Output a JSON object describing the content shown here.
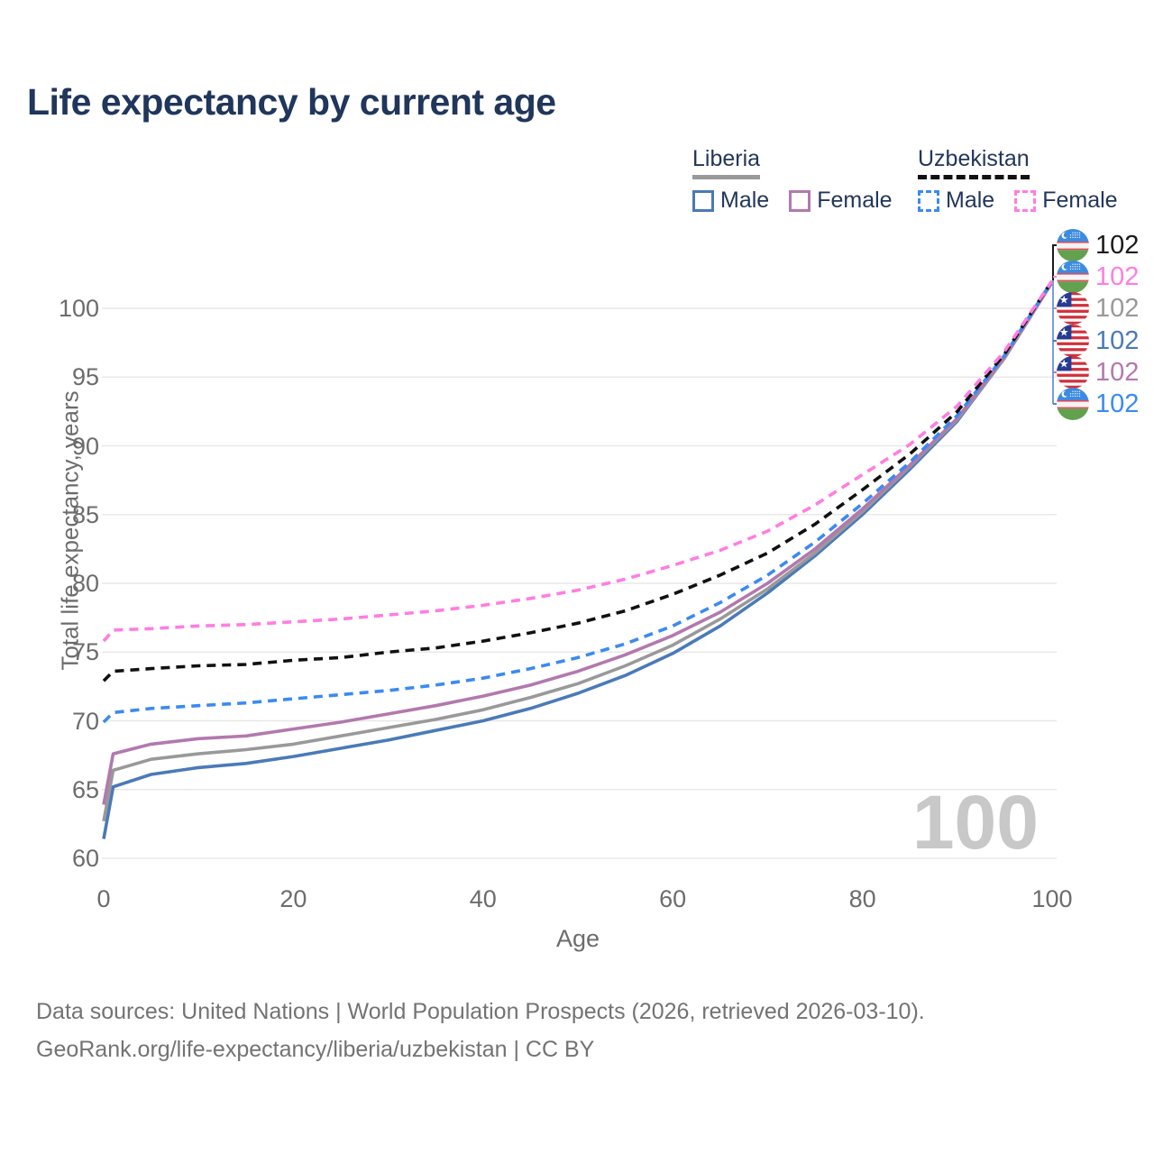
{
  "title": "Life expectancy by current age",
  "legend": {
    "groups": [
      {
        "label": "Liberia",
        "style": "solid",
        "underline_color": "#999999",
        "items": [
          {
            "label": "Male",
            "color": "#4a7ab8",
            "dash": false
          },
          {
            "label": "Female",
            "color": "#b279ae",
            "dash": false
          }
        ]
      },
      {
        "label": "Uzbekistan",
        "style": "dashed",
        "underline_color": "#111111",
        "items": [
          {
            "label": "Male",
            "color": "#3b8af2",
            "dash": true
          },
          {
            "label": "Female",
            "color": "#ff7de2",
            "dash": true
          }
        ]
      }
    ]
  },
  "end_labels": [
    {
      "flag": "uzbekistan-flag-icon",
      "value": "102",
      "color": "#1a1a1a"
    },
    {
      "flag": "uzbekistan-flag-icon",
      "value": "102",
      "color": "#ff7de2"
    },
    {
      "flag": "liberia-flag-icon",
      "value": "102",
      "color": "#999999"
    },
    {
      "flag": "liberia-flag-icon",
      "value": "102",
      "color": "#4a7ab8"
    },
    {
      "flag": "liberia-flag-icon",
      "value": "102",
      "color": "#b279ae"
    },
    {
      "flag": "uzbekistan-flag-icon",
      "value": "102",
      "color": "#3b8af2"
    }
  ],
  "watermark": {
    "text": "100"
  },
  "footer": {
    "line1": "Data sources: United Nations | World Population Prospects (2026, retrieved 2026-03-10).",
    "line2": "GeoRank.org/life-expectancy/liberia/uzbekistan | CC BY"
  },
  "chart_data": {
    "type": "line",
    "title": "Life expectancy by current age",
    "xlabel": "Age",
    "ylabel": "Total life expectancy, years",
    "xlim": [
      0,
      100
    ],
    "ylim": [
      60,
      102
    ],
    "grid": "horizontal",
    "legend_position": "top-right",
    "x_ticks": [
      0,
      20,
      40,
      60,
      80,
      100
    ],
    "y_ticks": [
      60,
      65,
      70,
      75,
      80,
      85,
      90,
      95,
      100
    ],
    "x": [
      0,
      1,
      5,
      10,
      15,
      20,
      25,
      30,
      35,
      40,
      45,
      50,
      55,
      60,
      65,
      70,
      75,
      80,
      85,
      90,
      95,
      100
    ],
    "series": [
      {
        "name": "Liberia Male",
        "country": "Liberia",
        "sex": "Male",
        "color": "#4a7ab8",
        "dash": false,
        "values": [
          61.4,
          65.2,
          66.1,
          66.6,
          66.9,
          67.4,
          68.0,
          68.6,
          69.3,
          70.0,
          70.9,
          72.0,
          73.3,
          74.9,
          76.9,
          79.3,
          82.0,
          85.0,
          88.3,
          91.8,
          96.4,
          101.9
        ]
      },
      {
        "name": "Liberia Total",
        "country": "Liberia",
        "sex": "Both",
        "color": "#999999",
        "dash": false,
        "values": [
          62.7,
          66.4,
          67.2,
          67.6,
          67.9,
          68.3,
          68.9,
          69.5,
          70.1,
          70.8,
          71.7,
          72.7,
          74.0,
          75.5,
          77.4,
          79.6,
          82.2,
          85.2,
          88.5,
          91.9,
          96.4,
          101.9
        ]
      },
      {
        "name": "Liberia Female",
        "country": "Liberia",
        "sex": "Female",
        "color": "#b279ae",
        "dash": false,
        "values": [
          63.9,
          67.6,
          68.3,
          68.7,
          68.9,
          69.4,
          69.9,
          70.5,
          71.1,
          71.8,
          72.6,
          73.6,
          74.8,
          76.2,
          77.9,
          80.0,
          82.5,
          85.4,
          88.6,
          92.0,
          96.5,
          101.9
        ]
      },
      {
        "name": "Uzbekistan Male",
        "country": "Uzbekistan",
        "sex": "Male",
        "color": "#3b8af2",
        "dash": true,
        "values": [
          69.9,
          70.6,
          70.9,
          71.1,
          71.3,
          71.6,
          71.9,
          72.2,
          72.6,
          73.1,
          73.8,
          74.6,
          75.6,
          76.9,
          78.6,
          80.6,
          83.0,
          85.8,
          88.8,
          92.2,
          96.6,
          102.0
        ]
      },
      {
        "name": "Uzbekistan Total",
        "country": "Uzbekistan",
        "sex": "Both",
        "color": "#111111",
        "dash": true,
        "values": [
          72.9,
          73.6,
          73.8,
          74.0,
          74.1,
          74.4,
          74.6,
          75.0,
          75.3,
          75.8,
          76.4,
          77.1,
          78.0,
          79.2,
          80.6,
          82.2,
          84.3,
          86.8,
          89.4,
          92.5,
          96.7,
          102.0
        ]
      },
      {
        "name": "Uzbekistan Female",
        "country": "Uzbekistan",
        "sex": "Female",
        "color": "#ff7de2",
        "dash": true,
        "values": [
          75.8,
          76.6,
          76.7,
          76.9,
          77.0,
          77.2,
          77.4,
          77.7,
          78.0,
          78.4,
          78.9,
          79.5,
          80.3,
          81.3,
          82.4,
          83.8,
          85.7,
          87.9,
          90.1,
          92.9,
          96.9,
          102.0
        ]
      }
    ]
  }
}
